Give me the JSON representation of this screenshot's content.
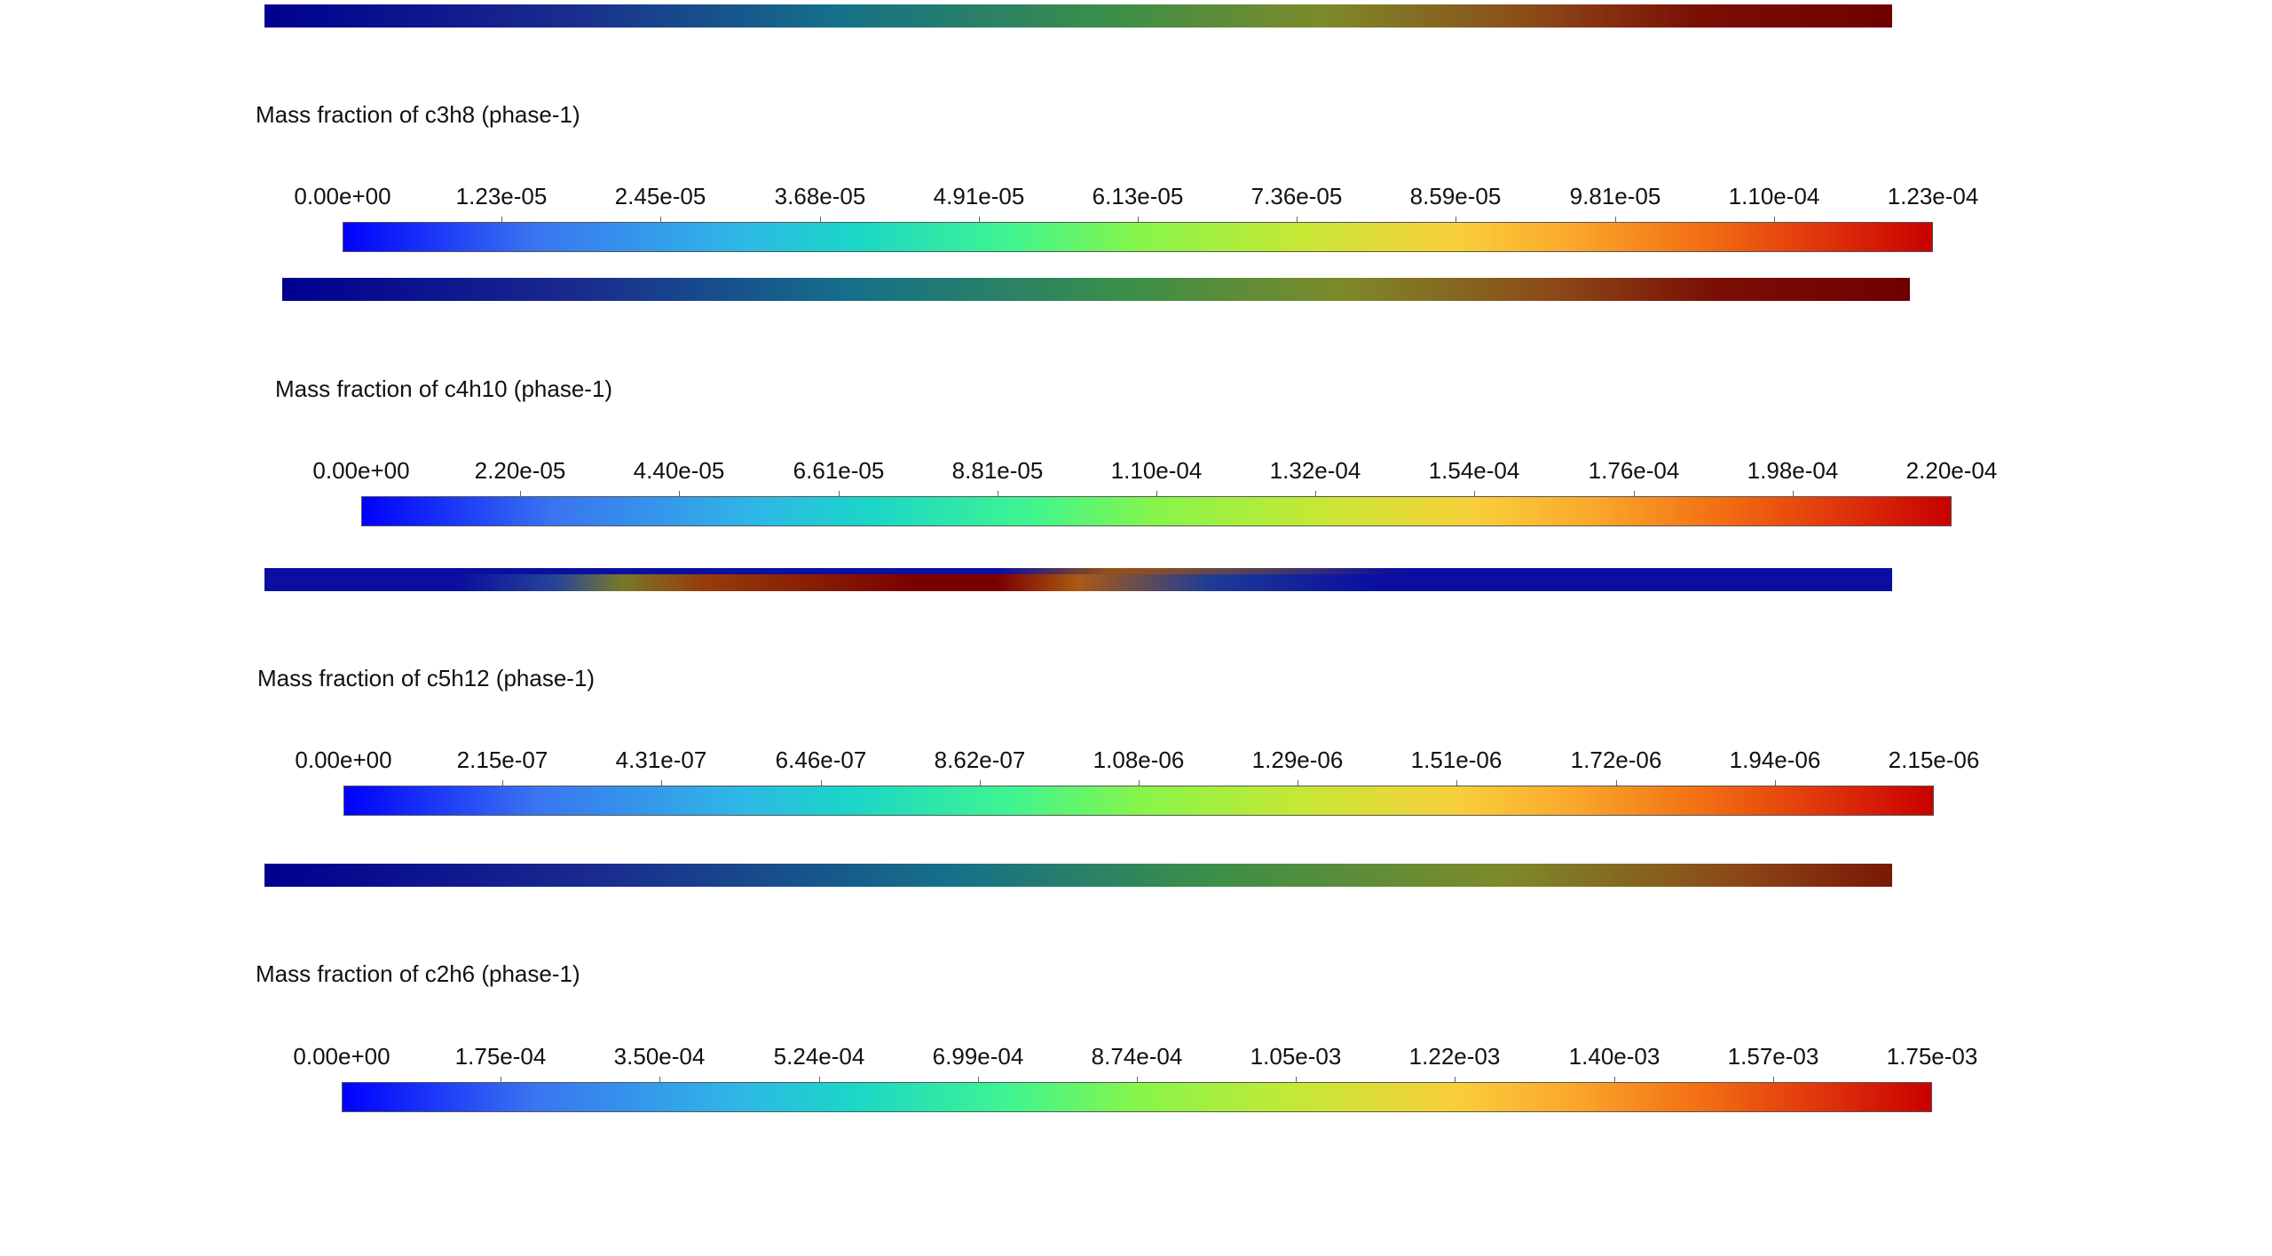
{
  "panels": [
    {
      "title": "Mass fraction of c3h8 (phase-1)",
      "ticks": [
        "0.00e+00",
        "1.23e-05",
        "2.45e-05",
        "3.68e-05",
        "4.91e-05",
        "6.13e-05",
        "7.36e-05",
        "8.59e-05",
        "9.81e-05",
        "1.10e-04",
        "1.23e-04"
      ]
    },
    {
      "title": "Mass fraction of c4h10 (phase-1)",
      "ticks": [
        "0.00e+00",
        "2.20e-05",
        "4.40e-05",
        "6.61e-05",
        "8.81e-05",
        "1.10e-04",
        "1.32e-04",
        "1.54e-04",
        "1.76e-04",
        "1.98e-04",
        "2.20e-04"
      ]
    },
    {
      "title": "Mass fraction of c5h12 (phase-1)",
      "ticks": [
        "0.00e+00",
        "2.15e-07",
        "4.31e-07",
        "6.46e-07",
        "8.62e-07",
        "1.08e-06",
        "1.29e-06",
        "1.51e-06",
        "1.72e-06",
        "1.94e-06",
        "2.15e-06"
      ]
    },
    {
      "title": "Mass fraction of c2h6 (phase-1)",
      "ticks": [
        "0.00e+00",
        "1.75e-04",
        "3.50e-04",
        "5.24e-04",
        "6.99e-04",
        "8.74e-04",
        "1.05e-03",
        "1.22e-03",
        "1.40e-03",
        "1.57e-03",
        "1.75e-03"
      ]
    }
  ],
  "colormap": {
    "scale_colors": [
      "#0000ff",
      "#2eb8e6",
      "#3ff58f",
      "#f8cf3a",
      "#c80000"
    ],
    "contour_colors": [
      "#00008f",
      "#15708a",
      "#3b8f48",
      "#8c4a18",
      "#6f0000"
    ]
  }
}
